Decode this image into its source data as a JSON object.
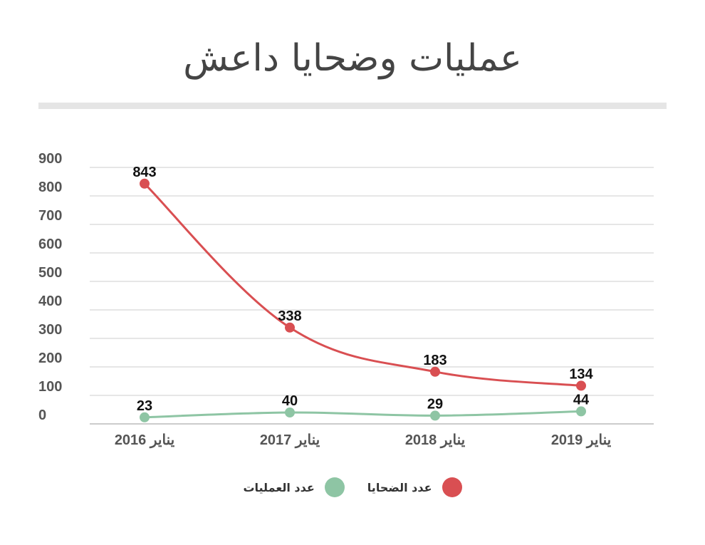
{
  "chart_data": {
    "type": "line",
    "title": "عمليات وضحايا داعش",
    "categories": [
      "يناير 2016",
      "يناير 2017",
      "يناير 2018",
      "يناير 2019"
    ],
    "series": [
      {
        "name": "عدد الضحايا",
        "values": [
          843,
          338,
          183,
          134
        ],
        "color": "#d94f52"
      },
      {
        "name": "عدد العمليات",
        "values": [
          23,
          40,
          29,
          44
        ],
        "color": "#8ec5a4"
      }
    ],
    "ylim": [
      0,
      900
    ],
    "yticks": [
      "0",
      "100",
      "200",
      "300",
      "400",
      "500",
      "600",
      "700",
      "800",
      "900"
    ],
    "grid": true,
    "legend": "bottom"
  }
}
